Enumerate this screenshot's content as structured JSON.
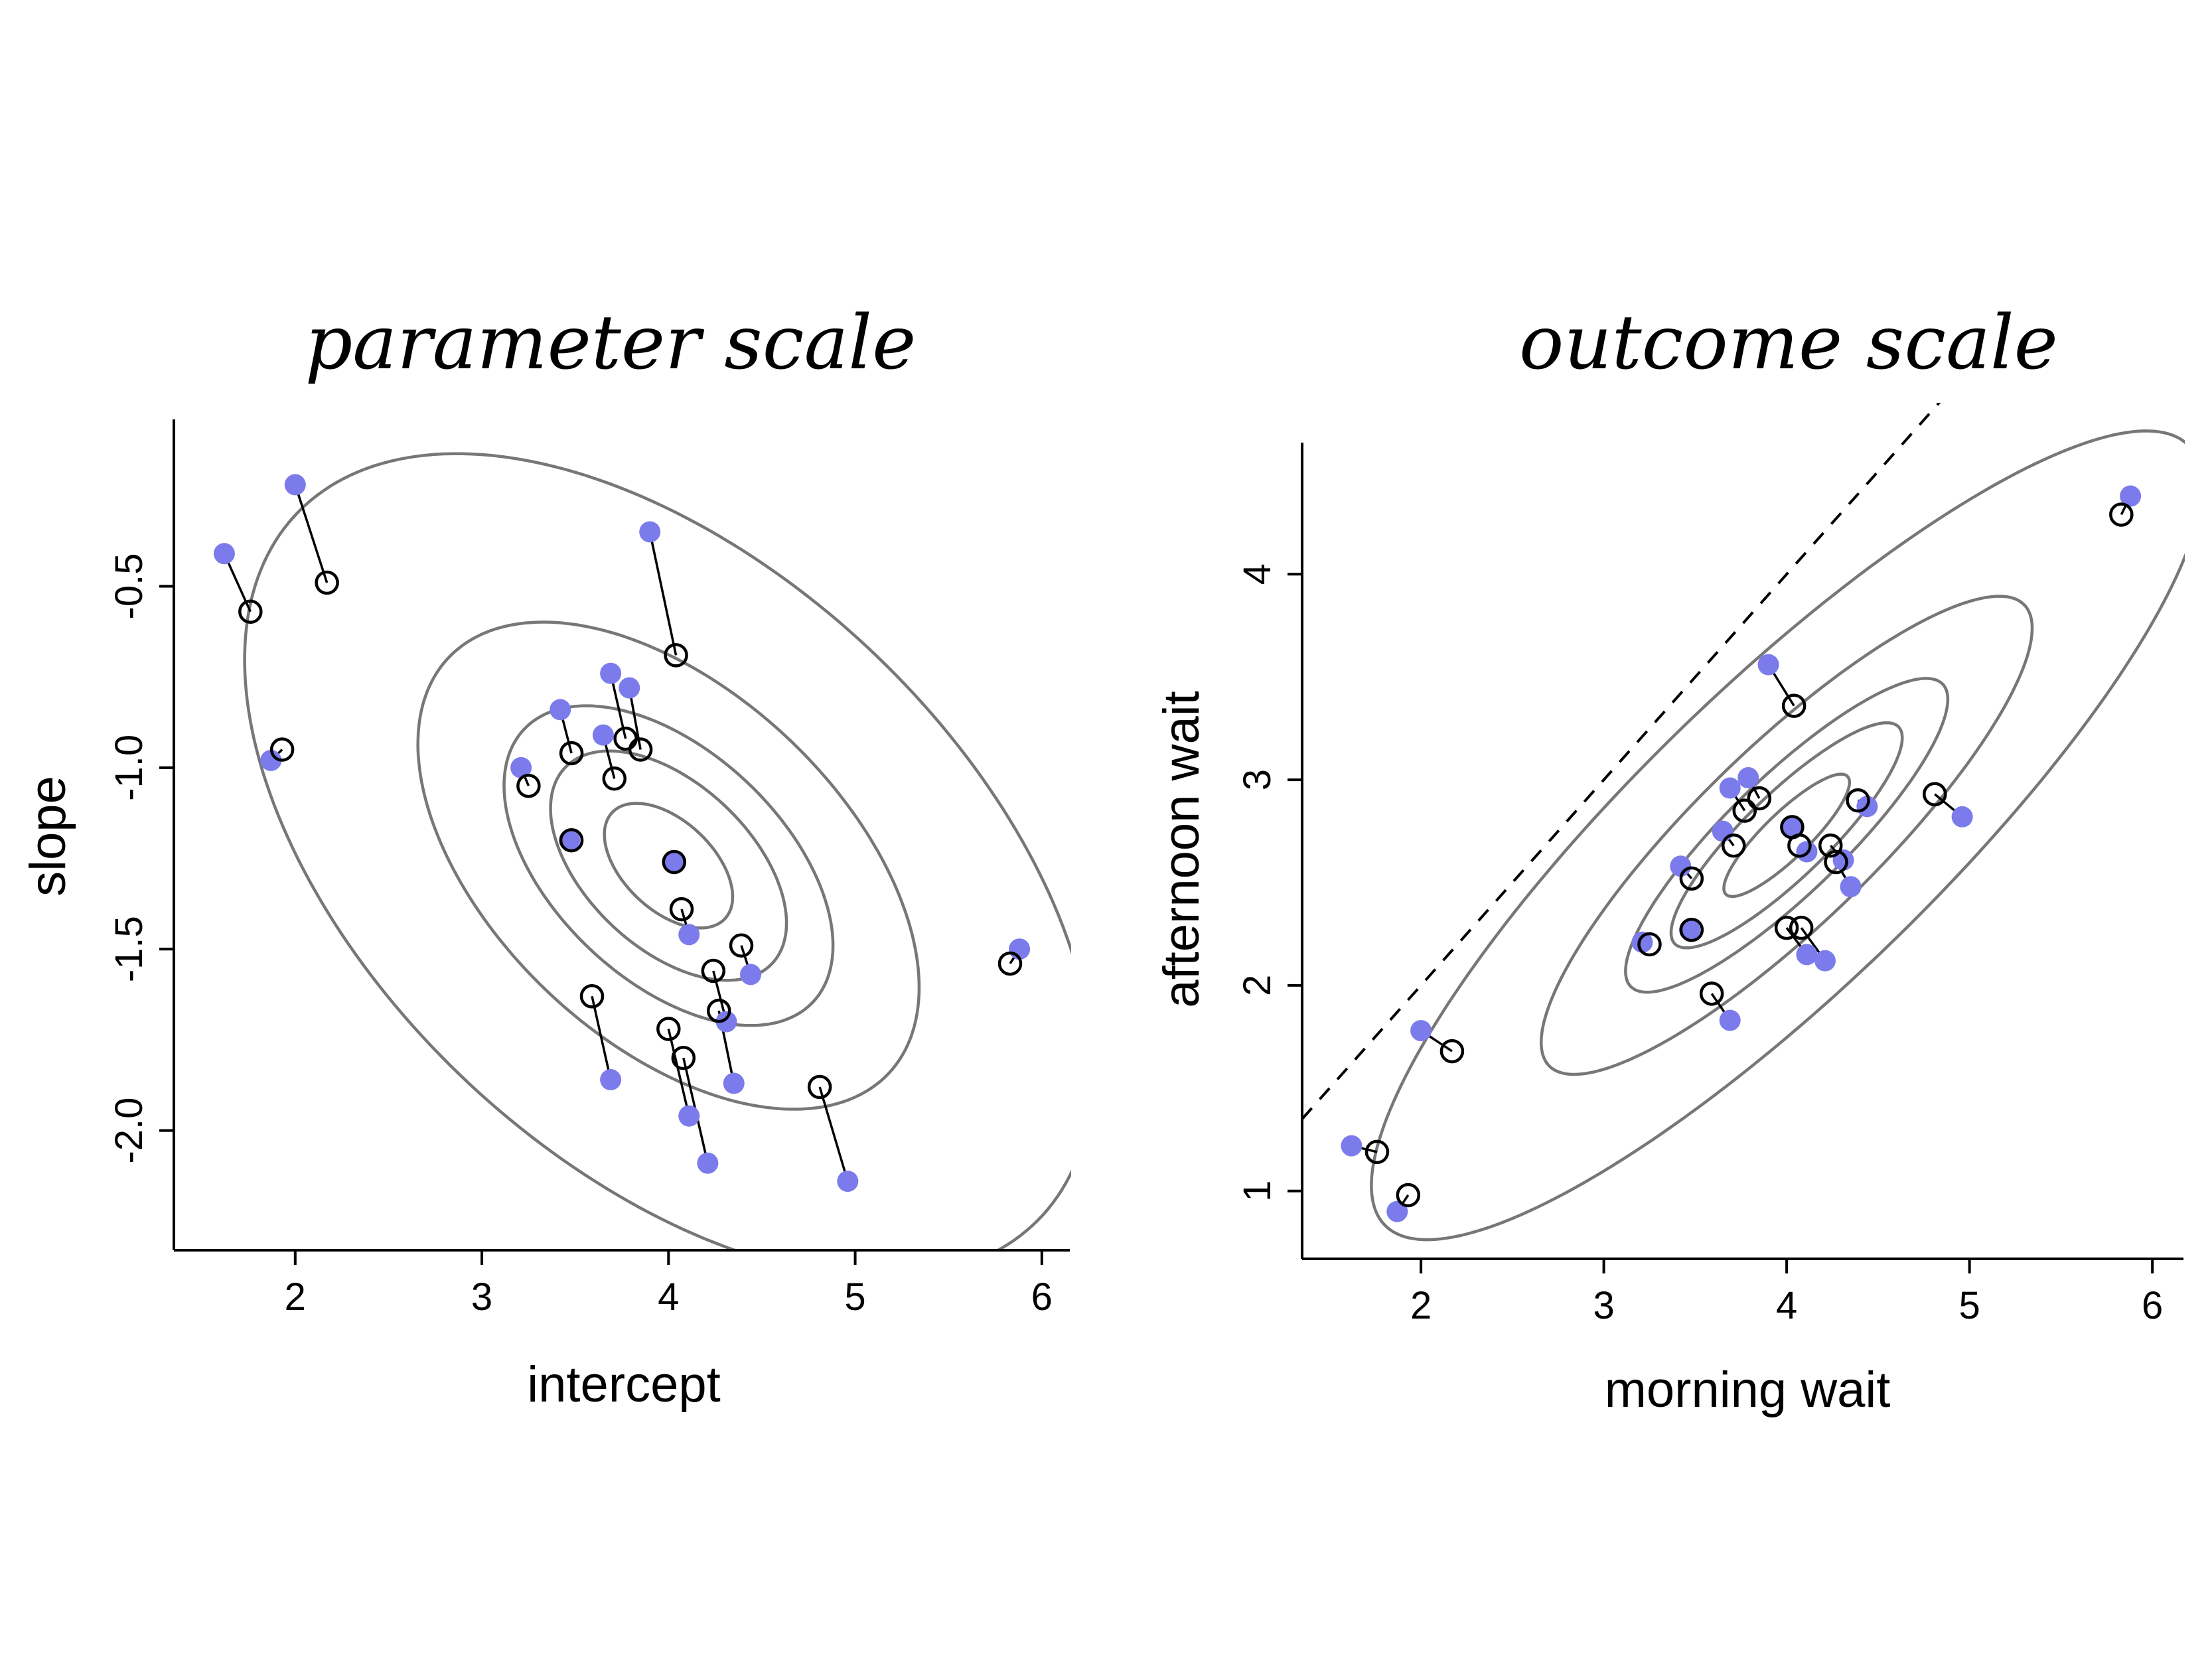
{
  "chart_data": [
    {
      "type": "scatter",
      "title": "parameter scale",
      "xlabel": "intercept",
      "ylabel": "slope",
      "xlim": [
        1.35,
        6.15
      ],
      "ylim": [
        -2.33,
        -0.04
      ],
      "xticks": [
        2,
        3,
        4,
        5,
        6
      ],
      "xtick_labels": [
        "2",
        "3",
        "4",
        "5",
        "6"
      ],
      "yticks": [
        -2.0,
        -1.5,
        -1.0,
        -0.5
      ],
      "ytick_labels": [
        "-2.0",
        "-1.5",
        "-1.0",
        "-0.5"
      ],
      "grid": false,
      "colors": {
        "raw": "#7B7BEC",
        "posterior": "#000000",
        "contour": "#777777"
      },
      "contours": {
        "center": [
          4.0,
          -1.27
        ],
        "cov": [
          [
            0.56,
            -0.14
          ],
          [
            -0.14,
            0.14
          ]
        ],
        "levels": [
          0.1,
          0.3,
          0.5,
          0.8,
          0.99
        ]
      },
      "points": [
        {
          "raw": [
            1.62,
            -0.41
          ],
          "post": [
            1.76,
            -0.57
          ]
        },
        {
          "raw": [
            2.0,
            -0.22
          ],
          "post": [
            2.17,
            -0.49
          ]
        },
        {
          "raw": [
            1.87,
            -0.98
          ],
          "post": [
            1.93,
            -0.95
          ]
        },
        {
          "raw": [
            3.9,
            -0.35
          ],
          "post": [
            4.04,
            -0.69
          ]
        },
        {
          "raw": [
            3.42,
            -0.84
          ],
          "post": [
            3.48,
            -0.96
          ]
        },
        {
          "raw": [
            3.69,
            -0.74
          ],
          "post": [
            3.77,
            -0.92
          ]
        },
        {
          "raw": [
            3.79,
            -0.78
          ],
          "post": [
            3.85,
            -0.95
          ]
        },
        {
          "raw": [
            3.65,
            -0.91
          ],
          "post": [
            3.71,
            -1.03
          ]
        },
        {
          "raw": [
            3.21,
            -1.0
          ],
          "post": [
            3.25,
            -1.05
          ]
        },
        {
          "raw": [
            3.47,
            -1.2
          ],
          "post": [
            3.48,
            -1.2
          ]
        },
        {
          "raw": [
            4.03,
            -1.26
          ],
          "post": [
            4.03,
            -1.26
          ]
        },
        {
          "raw": [
            4.11,
            -1.46
          ],
          "post": [
            4.07,
            -1.39
          ]
        },
        {
          "raw": [
            4.44,
            -1.57
          ],
          "post": [
            4.39,
            -1.49
          ]
        },
        {
          "raw": [
            4.31,
            -1.7
          ],
          "post": [
            4.24,
            -1.56
          ]
        },
        {
          "raw": [
            3.69,
            -1.86
          ],
          "post": [
            3.59,
            -1.63
          ]
        },
        {
          "raw": [
            4.35,
            -1.87
          ],
          "post": [
            4.27,
            -1.67
          ]
        },
        {
          "raw": [
            4.11,
            -1.96
          ],
          "post": [
            4.0,
            -1.72
          ]
        },
        {
          "raw": [
            4.21,
            -2.09
          ],
          "post": [
            4.08,
            -1.8
          ]
        },
        {
          "raw": [
            4.96,
            -2.14
          ],
          "post": [
            4.81,
            -1.88
          ]
        },
        {
          "raw": [
            5.88,
            -1.5
          ],
          "post": [
            5.83,
            -1.54
          ]
        }
      ]
    },
    {
      "type": "scatter",
      "title": "outcome scale",
      "xlabel": "morning wait",
      "ylabel": "afternoon wait",
      "xlim": [
        1.35,
        6.17
      ],
      "ylim": [
        0.67,
        4.64
      ],
      "xticks": [
        2,
        3,
        4,
        5,
        6
      ],
      "xtick_labels": [
        "2",
        "3",
        "4",
        "5",
        "6"
      ],
      "yticks": [
        1,
        2,
        3,
        4
      ],
      "ytick_labels": [
        "1",
        "2",
        "3",
        "4"
      ],
      "grid": false,
      "reference_line": {
        "slope": 1,
        "intercept": 0,
        "style": "dashed"
      },
      "colors": {
        "raw": "#7B7BEC",
        "posterior": "#000000",
        "contour": "#777777"
      },
      "contours": {
        "center": [
          4.0,
          2.73
        ],
        "cov": [
          [
            0.56,
            0.42
          ],
          [
            0.42,
            0.42
          ]
        ],
        "levels": [
          0.1,
          0.3,
          0.5,
          0.8,
          0.99
        ]
      },
      "points": [
        {
          "raw": [
            1.62,
            1.22
          ],
          "post": [
            1.76,
            1.19
          ]
        },
        {
          "raw": [
            1.87,
            0.9
          ],
          "post": [
            1.93,
            0.98
          ]
        },
        {
          "raw": [
            2.0,
            1.78
          ],
          "post": [
            2.17,
            1.68
          ]
        },
        {
          "raw": [
            3.9,
            3.56
          ],
          "post": [
            4.04,
            3.36
          ]
        },
        {
          "raw": [
            3.21,
            2.21
          ],
          "post": [
            3.25,
            2.2
          ]
        },
        {
          "raw": [
            3.42,
            2.58
          ],
          "post": [
            3.48,
            2.52
          ]
        },
        {
          "raw": [
            3.47,
            2.27
          ],
          "post": [
            3.48,
            2.27
          ]
        },
        {
          "raw": [
            3.69,
            2.96
          ],
          "post": [
            3.77,
            2.85
          ]
        },
        {
          "raw": [
            3.79,
            3.01
          ],
          "post": [
            3.85,
            2.91
          ]
        },
        {
          "raw": [
            3.65,
            2.75
          ],
          "post": [
            3.71,
            2.68
          ]
        },
        {
          "raw": [
            4.03,
            2.77
          ],
          "post": [
            4.03,
            2.77
          ]
        },
        {
          "raw": [
            4.11,
            2.65
          ],
          "post": [
            4.07,
            2.68
          ]
        },
        {
          "raw": [
            4.31,
            2.61
          ],
          "post": [
            4.24,
            2.68
          ]
        },
        {
          "raw": [
            4.35,
            2.48
          ],
          "post": [
            4.27,
            2.6
          ]
        },
        {
          "raw": [
            4.44,
            2.87
          ],
          "post": [
            4.39,
            2.9
          ]
        },
        {
          "raw": [
            3.69,
            1.83
          ],
          "post": [
            3.59,
            1.96
          ]
        },
        {
          "raw": [
            4.11,
            2.15
          ],
          "post": [
            4.0,
            2.28
          ]
        },
        {
          "raw": [
            4.21,
            2.12
          ],
          "post": [
            4.08,
            2.28
          ]
        },
        {
          "raw": [
            4.96,
            2.82
          ],
          "post": [
            4.81,
            2.93
          ]
        },
        {
          "raw": [
            5.88,
            4.38
          ],
          "post": [
            5.83,
            4.29
          ]
        }
      ]
    }
  ]
}
